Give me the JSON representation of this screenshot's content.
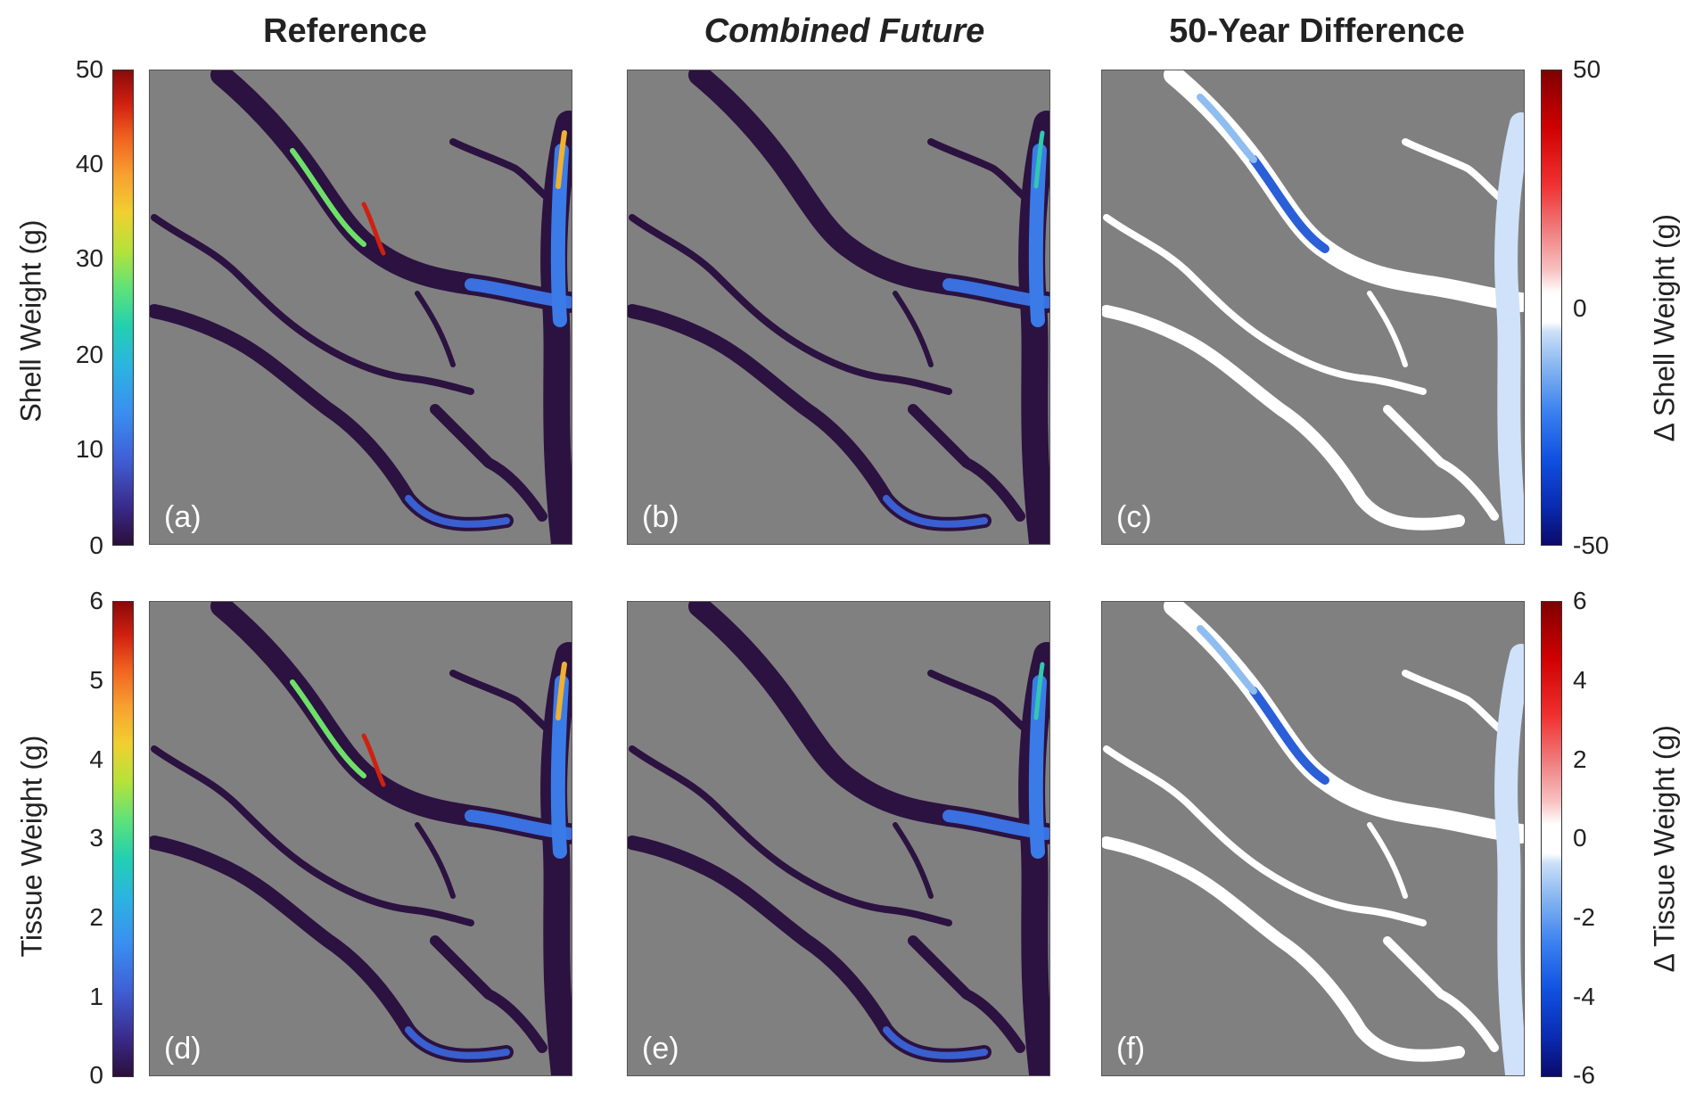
{
  "columns": [
    "Reference",
    "Combined Future",
    "50-Year Difference"
  ],
  "rows": [
    {
      "ylabel_left": "Shell Weight (g)",
      "ylabel_right": "Δ Shell Weight (g)",
      "left_ticks": [
        "50",
        "40",
        "30",
        "20",
        "10",
        "0"
      ],
      "right_ticks": [
        "50",
        "0",
        "-50"
      ],
      "panel_labels": [
        "(a)",
        "(b)",
        "(c)"
      ]
    },
    {
      "ylabel_left": "Tissue Weight (g)",
      "ylabel_right": "Δ Tissue Weight (g)",
      "left_ticks": [
        "6",
        "5",
        "4",
        "3",
        "2",
        "1",
        "0"
      ],
      "right_ticks": [
        "6",
        "4",
        "2",
        "0",
        "-2",
        "-4",
        "-6"
      ],
      "panel_labels": [
        "(d)",
        "(e)",
        "(f)"
      ]
    }
  ],
  "colors": {
    "land": "#808080",
    "water_low": "#2b1240",
    "diff_zero": "#ffffff",
    "diff_neg": "#1a5fd8"
  },
  "icons": [
    "jet-colormap",
    "diverging-blue-white-red-colormap"
  ]
}
